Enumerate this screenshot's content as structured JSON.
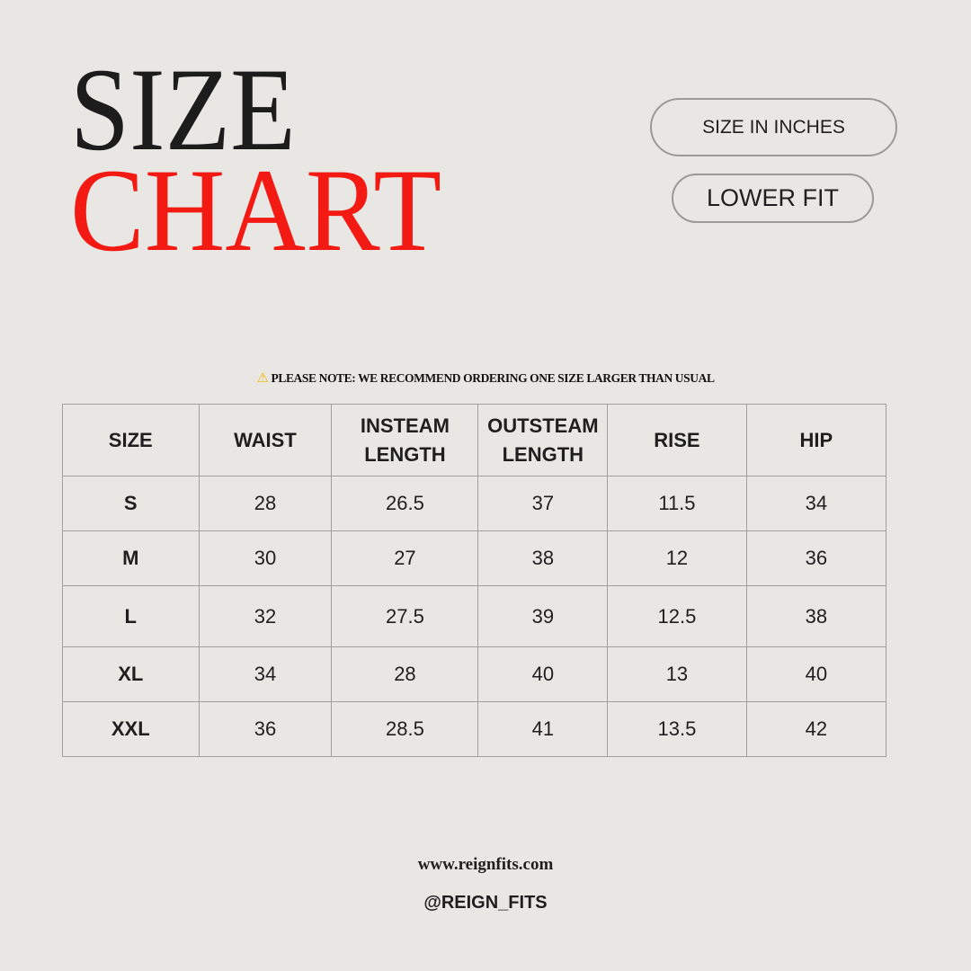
{
  "title": {
    "line1": "SIZE",
    "line2": "CHART"
  },
  "colors": {
    "accent": "#f21a13",
    "background": "#e8e7e3"
  },
  "badges": {
    "units": "SIZE IN INCHES",
    "fit": "LOWER FIT"
  },
  "note": {
    "icon": "warning-icon",
    "icon_glyph": "⚠",
    "text": "PLEASE NOTE:  WE RECOMMEND ORDERING ONE SIZE LARGER THAN USUAL"
  },
  "table": {
    "headers": [
      "SIZE",
      "WAIST",
      "INSTEAM LENGTH",
      "OUTSTEAM LENGTH",
      "RISE",
      "HIP"
    ],
    "rows": [
      [
        "S",
        "28",
        "26.5",
        "37",
        "11.5",
        "34"
      ],
      [
        "M",
        "30",
        "27",
        "38",
        "12",
        "36"
      ],
      [
        "L",
        "32",
        "27.5",
        "39",
        "12.5",
        "38"
      ],
      [
        "XL",
        "34",
        "28",
        "40",
        "13",
        "40"
      ],
      [
        "XXL",
        "36",
        "28.5",
        "41",
        "13.5",
        "42"
      ]
    ]
  },
  "footer": {
    "website": "www.reignfits.com",
    "handle": "@REIGN_FITS"
  }
}
